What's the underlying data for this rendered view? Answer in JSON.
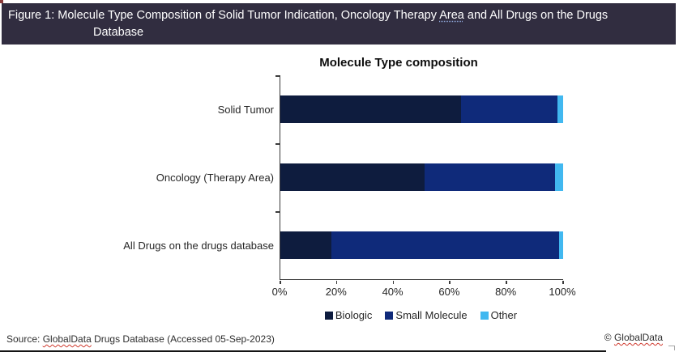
{
  "header": {
    "background": "#312d40",
    "text_color": "#ffffff",
    "line1_part1": "Figure 1: Molecule Type Composition of Solid Tumor Indication, Oncology Therapy ",
    "line1_misspelled_word": "Area",
    "line1_part2": " and All Drugs on the Drugs",
    "line2": "Database"
  },
  "chart_data": {
    "type": "bar",
    "orientation": "horizontal",
    "stacked": true,
    "title": "Molecule Type composition",
    "categories": [
      "Solid Tumor",
      "Oncology (Therapy Area)",
      "All Drugs on the drugs database"
    ],
    "series": [
      {
        "name": "Biologic",
        "color": "#0e1c3e",
        "values": [
          64,
          51,
          18
        ]
      },
      {
        "name": "Small Molecule",
        "color": "#0f2a7a",
        "values": [
          34,
          46,
          80.5
        ]
      },
      {
        "name": "Other",
        "color": "#41b8f0",
        "values": [
          2,
          3,
          1.5
        ]
      }
    ],
    "x_axis": {
      "min": 0,
      "max": 100,
      "ticks": [
        "0%",
        "20%",
        "40%",
        "60%",
        "80%",
        "100%"
      ]
    },
    "legend_position": "bottom",
    "grid": false
  },
  "footer": {
    "source_prefix": "Source: ",
    "source_brand": "GlobalData",
    "source_suffix": " Drugs Database (Accessed 05-Sep-2023)",
    "copyright_prefix": "© ",
    "copyright_brand": "GlobalData"
  }
}
